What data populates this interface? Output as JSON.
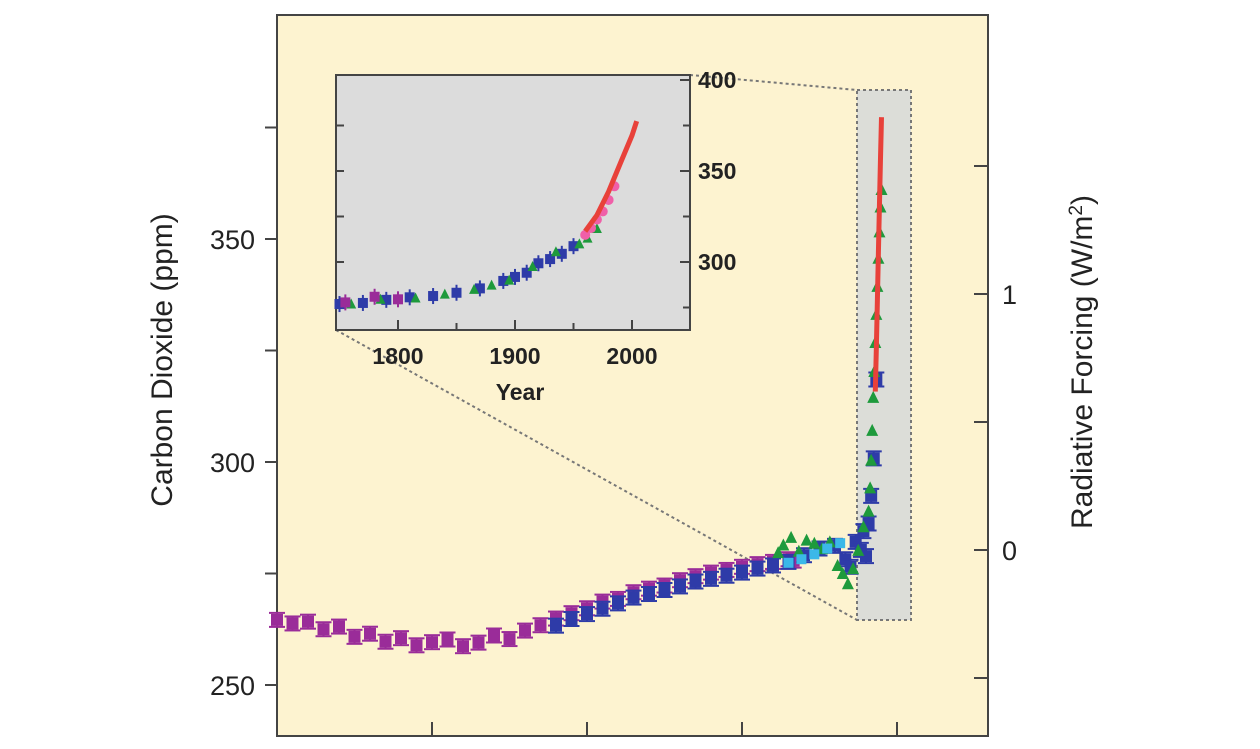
{
  "colors": {
    "background": "#fdf3d0",
    "inset_background": "#dcdcdc",
    "highlight_background": "#d8dad8",
    "series_magenta": "#9a2c99",
    "series_blue": "#2e3ba8",
    "series_green": "#1e9a3c",
    "series_cyan": "#3bb8e8",
    "series_red": "#e8413a",
    "series_pink": "#f05fa8"
  },
  "chart_data": [
    {
      "type": "scatter",
      "title": "",
      "ylabel": "Carbon Dioxide (ppm)",
      "y2label_text": "Radiative Forcing (W/m",
      "y2label_sup": "2",
      "y2label_close": ")",
      "ylim": [
        244,
        385
      ],
      "y_ticks": [
        250,
        300,
        350
      ],
      "y_minor_ticks": [
        275,
        325,
        375
      ],
      "y2_ticks": [
        "0",
        "1"
      ],
      "x_tick_count": 5,
      "series": [
        {
          "color": "magenta",
          "x": [
            0,
            300,
            600,
            900,
            1200,
            1500,
            1800,
            2100,
            2400,
            2700,
            3000,
            3300,
            3600,
            3900,
            4200,
            4500,
            4800,
            5100,
            5400,
            5700,
            6000,
            6300,
            6600,
            6900,
            7200,
            7500,
            7800,
            8100,
            8400,
            8700,
            9000,
            9300,
            9600,
            9900,
            10000
          ],
          "y": [
            264.6,
            263.8,
            264.2,
            262.5,
            263.1,
            260.8,
            261.5,
            259.7,
            260.5,
            258.9,
            259.6,
            260.2,
            258.7,
            259.5,
            261.1,
            260.3,
            262.2,
            263.4,
            264.9,
            266.1,
            267.2,
            268.7,
            269.3,
            270.8,
            271.6,
            272.3,
            273.5,
            274.4,
            275.2,
            275.8,
            276.5,
            277.1,
            277.6,
            278.2,
            277.9
          ]
        },
        {
          "color": "blue",
          "x": [
            5400,
            5700,
            6000,
            6300,
            6600,
            6900,
            7200,
            7500,
            7800,
            8100,
            8400,
            8700,
            9000,
            9300,
            9600,
            9900,
            10200,
            10500,
            10800,
            11000,
            11100,
            11200,
            11300,
            11350,
            11400,
            11450,
            11500,
            11550,
            11600
          ],
          "y": [
            263.3,
            264.8,
            265.9,
            267.1,
            268.3,
            269.6,
            270.4,
            271.3,
            272.1,
            273.2,
            273.8,
            274.5,
            275.2,
            276.1,
            276.8,
            277.6,
            279.1,
            280.6,
            281.2,
            278.2,
            276.5,
            282.1,
            280.3,
            284.5,
            278.9,
            286.2,
            292.4,
            300.8,
            318.5
          ]
        },
        {
          "color": "green",
          "x": [
            9700,
            9800,
            9950,
            10100,
            10250,
            10400,
            10550,
            10700,
            10850,
            10950,
            11050,
            11150,
            11250,
            11350,
            11450,
            11480,
            11500,
            11520,
            11540,
            11560,
            11580,
            11600,
            11620,
            11640,
            11660,
            11680,
            11700
          ],
          "y": [
            279.8,
            281.5,
            283.2,
            280.1,
            282.6,
            281.9,
            280.7,
            282.2,
            276.9,
            275.1,
            272.8,
            276.2,
            280.3,
            285.6,
            289.1,
            294.3,
            300.5,
            307.2,
            314.6,
            320.4,
            326.9,
            333.2,
            339.5,
            345.8,
            351.7,
            357.3,
            361.2
          ]
        },
        {
          "color": "cyan",
          "x": [
            9900,
            10150,
            10400,
            10650,
            10900
          ],
          "y": [
            277.4,
            278.2,
            279.3,
            280.6,
            281.8
          ]
        },
        {
          "color": "red",
          "x": [
            11580,
            11600,
            11620,
            11640,
            11660,
            11680,
            11700
          ],
          "y": [
            315.8,
            325.4,
            336.1,
            346.9,
            357.5,
            367.8,
            377.3
          ]
        }
      ]
    },
    {
      "type": "scatter",
      "title": "",
      "xlabel": "Year",
      "ylabel": "",
      "xlim": [
        1750,
        2050
      ],
      "ylim": [
        260,
        400
      ],
      "x_ticks": [
        1800,
        1900,
        2000
      ],
      "y_ticks": [
        300,
        350,
        400
      ],
      "series": [
        {
          "color": "blue",
          "x": [
            1750,
            1770,
            1790,
            1810,
            1830,
            1850,
            1870,
            1890,
            1900,
            1910,
            1920,
            1930,
            1940,
            1950
          ],
          "y": [
            276.9,
            277.5,
            279.2,
            280.6,
            281.3,
            283.1,
            285.5,
            289.6,
            291.8,
            294.1,
            299.3,
            301.6,
            304.5,
            308.7
          ]
        },
        {
          "color": "green",
          "x": [
            1760,
            1785,
            1815,
            1840,
            1865,
            1880,
            1895,
            1915,
            1935,
            1955,
            1962,
            1970
          ],
          "y": [
            277.2,
            279.8,
            280.5,
            282.6,
            285.2,
            287.6,
            290.3,
            297.8,
            305.9,
            310.2,
            313.4,
            318.7
          ]
        },
        {
          "color": "magenta",
          "x": [
            1755,
            1780,
            1800
          ],
          "y": [
            277.8,
            280.9,
            279.5
          ]
        },
        {
          "color": "pink",
          "x": [
            1960,
            1965,
            1970,
            1975,
            1980,
            1985
          ],
          "y": [
            314.9,
            318.6,
            323.3,
            327.8,
            334.1,
            341.6
          ]
        },
        {
          "color": "red",
          "x": [
            1960,
            1970,
            1980,
            1990,
            2000,
            2004
          ],
          "y": [
            316.9,
            325.7,
            338.7,
            354.2,
            369.5,
            377.4
          ]
        }
      ]
    }
  ]
}
